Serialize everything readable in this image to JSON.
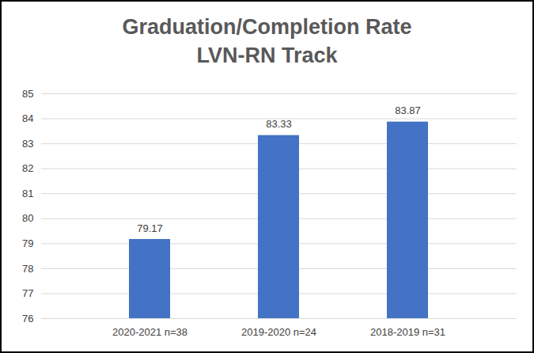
{
  "chart_data": {
    "type": "bar",
    "title": "Graduation/Completion Rate",
    "subtitle": "LVN-RN Track",
    "categories": [
      "2020-2021 n=38",
      "2019-2020 n=24",
      "2018-2019 n=31"
    ],
    "values": [
      79.17,
      83.33,
      83.87
    ],
    "color": "#4472c4",
    "ylim": [
      76,
      85
    ],
    "yticks": [
      76,
      77,
      78,
      79,
      80,
      81,
      82,
      83,
      84,
      85
    ],
    "grid": true,
    "data_labels": true
  }
}
